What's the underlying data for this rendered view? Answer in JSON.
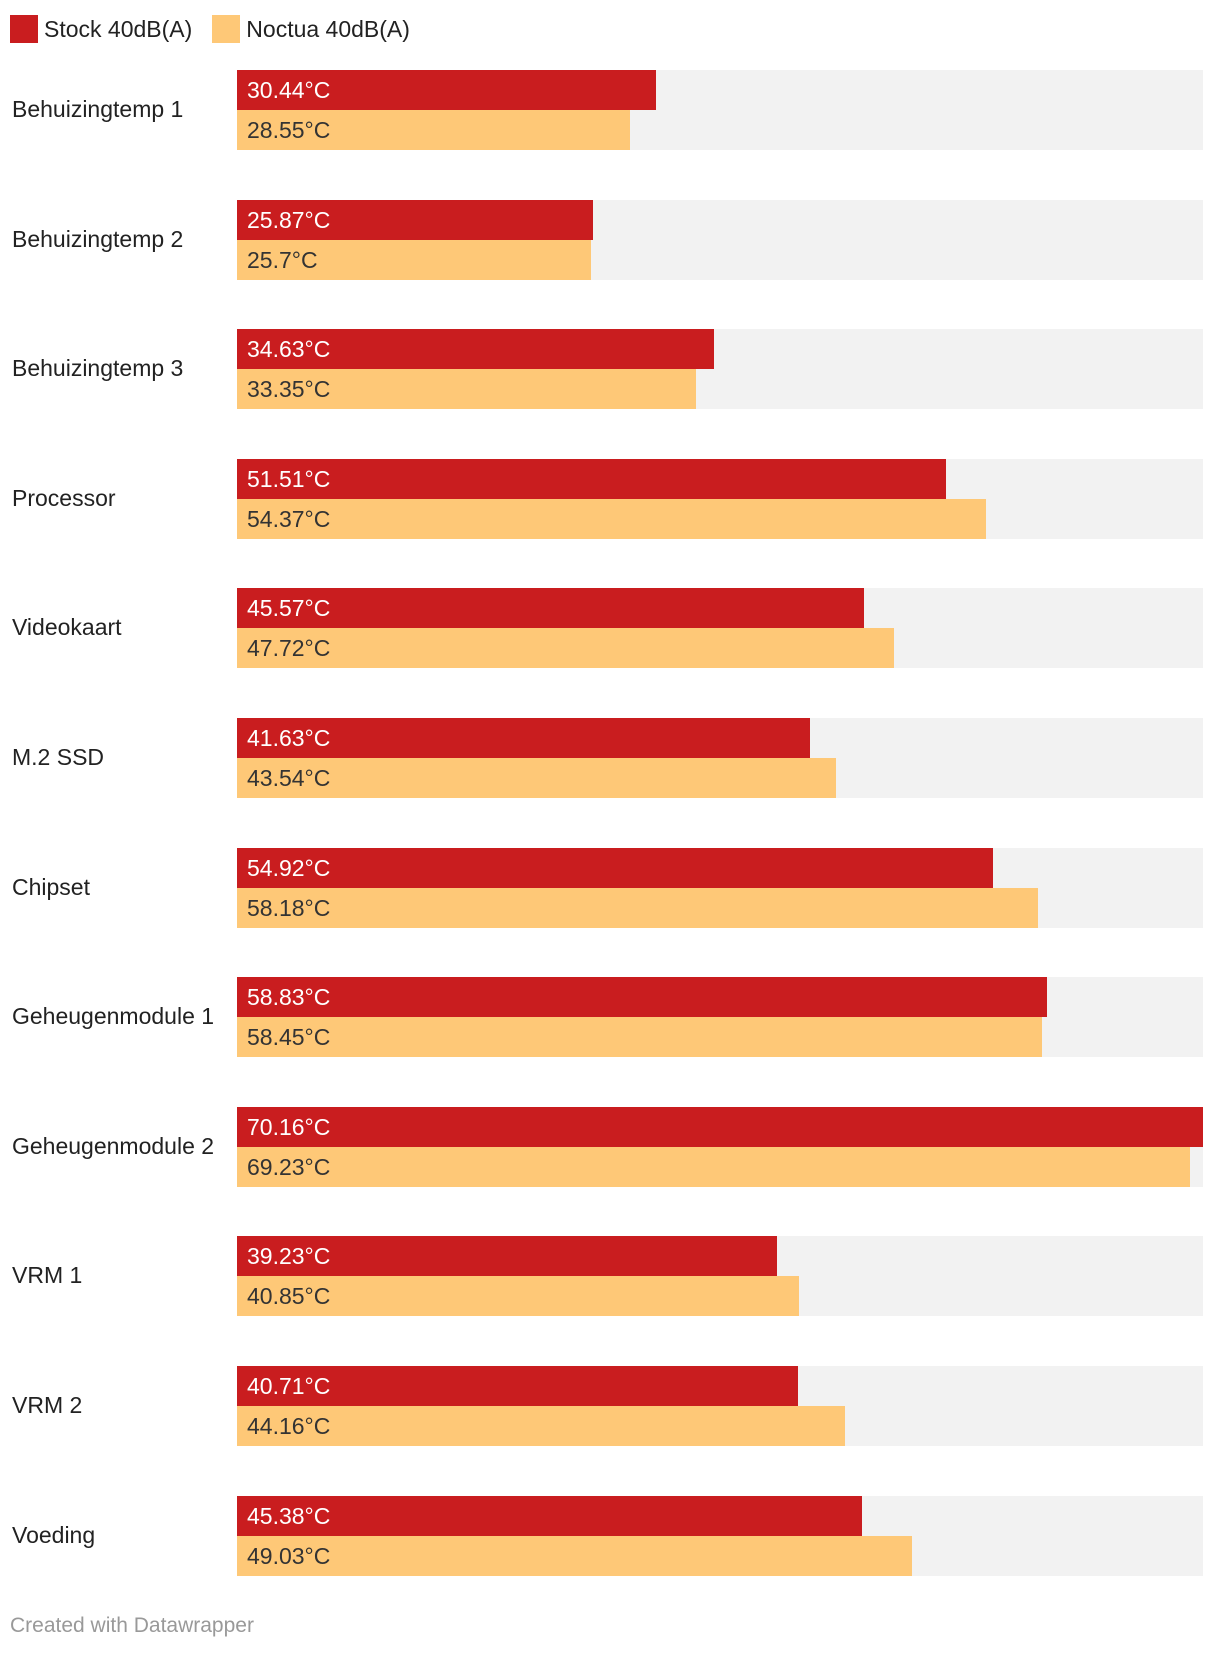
{
  "chart_data": {
    "type": "bar",
    "orientation": "horizontal",
    "title": "",
    "xlabel": "",
    "ylabel": "",
    "xlim": [
      0,
      70.16
    ],
    "unit": "°C",
    "categories": [
      "Behuizingtemp 1",
      "Behuizingtemp 2",
      "Behuizingtemp 3",
      "Processor",
      "Videokaart",
      "M.2 SSD",
      "Chipset",
      "Geheugenmodule 1",
      "Geheugenmodule 2",
      "VRM 1",
      "VRM 2",
      "Voeding"
    ],
    "series": [
      {
        "name": "Stock 40dB(A)",
        "color": "#c91d1f",
        "values": [
          30.44,
          25.87,
          34.63,
          51.51,
          45.57,
          41.63,
          54.92,
          58.83,
          70.16,
          39.23,
          40.71,
          45.38
        ],
        "labels": [
          "30.44°C",
          "25.87°C",
          "34.63°C",
          "51.51°C",
          "45.57°C",
          "41.63°C",
          "54.92°C",
          "58.83°C",
          "70.16°C",
          "39.23°C",
          "40.71°C",
          "45.38°C"
        ]
      },
      {
        "name": "Noctua 40dB(A)",
        "color": "#fec877",
        "values": [
          28.55,
          25.7,
          33.35,
          54.37,
          47.72,
          43.54,
          58.18,
          58.45,
          69.23,
          40.85,
          44.16,
          49.03
        ],
        "labels": [
          "28.55°C",
          "25.7°C",
          "33.35°C",
          "54.37°C",
          "47.72°C",
          "43.54°C",
          "58.18°C",
          "58.45°C",
          "69.23°C",
          "40.85°C",
          "44.16°C",
          "49.03°C"
        ]
      }
    ],
    "legend_position": "top-left",
    "track_color": "#f2f2f2"
  },
  "footer": {
    "credit": "Created with Datawrapper"
  }
}
